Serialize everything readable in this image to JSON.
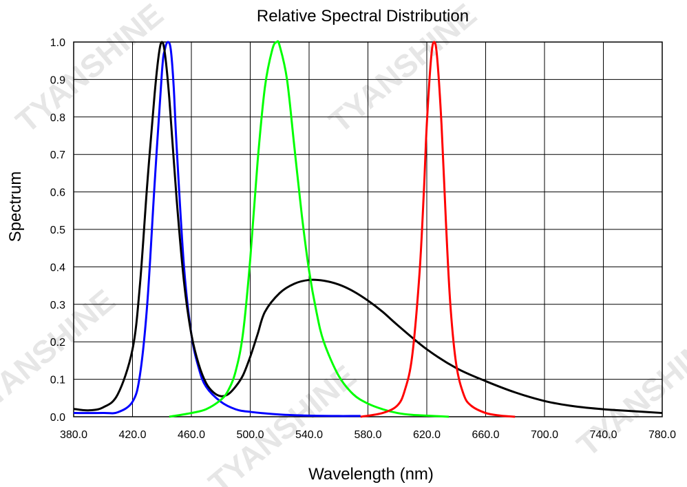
{
  "chart_data": {
    "type": "line",
    "title": "Relative Spectral Distribution",
    "xlabel": "Wavelength (nm)",
    "ylabel": "Spectrum",
    "xlim": [
      380,
      780
    ],
    "ylim": [
      0,
      1.0
    ],
    "x_ticks": [
      "380.0",
      "420.0",
      "460.0",
      "500.0",
      "540.0",
      "580.0",
      "620.0",
      "660.0",
      "700.0",
      "740.0",
      "780.0"
    ],
    "y_ticks": [
      "0.0",
      "0.1",
      "0.2",
      "0.3",
      "0.4",
      "0.5",
      "0.6",
      "0.7",
      "0.8",
      "0.9",
      "1.0"
    ],
    "grid": true,
    "legend": "none",
    "series": [
      {
        "color": "#0000ff",
        "x": [
          380,
          400,
          410,
          420,
          425,
          430,
          435,
          440,
          442,
          444,
          446,
          448,
          450,
          455,
          460,
          465,
          470,
          480,
          490,
          500,
          520,
          540,
          560,
          575
        ],
        "values": [
          0.01,
          0.01,
          0.012,
          0.04,
          0.11,
          0.3,
          0.62,
          0.92,
          0.98,
          1.0,
          0.98,
          0.88,
          0.72,
          0.4,
          0.22,
          0.13,
          0.08,
          0.04,
          0.02,
          0.013,
          0.006,
          0.003,
          0.002,
          0.002
        ]
      },
      {
        "color": "#000000",
        "x": [
          380,
          390,
          400,
          410,
          420,
          425,
          430,
          435,
          438,
          440,
          442,
          445,
          450,
          455,
          460,
          465,
          470,
          475,
          480,
          485,
          490,
          495,
          500,
          505,
          510,
          520,
          530,
          540,
          550,
          560,
          570,
          580,
          590,
          600,
          620,
          640,
          660,
          680,
          700,
          720,
          740,
          760,
          780
        ],
        "values": [
          0.021,
          0.017,
          0.025,
          0.06,
          0.18,
          0.35,
          0.62,
          0.86,
          0.97,
          1.0,
          0.97,
          0.85,
          0.58,
          0.36,
          0.22,
          0.14,
          0.09,
          0.065,
          0.055,
          0.06,
          0.08,
          0.11,
          0.16,
          0.22,
          0.28,
          0.33,
          0.355,
          0.365,
          0.363,
          0.353,
          0.335,
          0.31,
          0.28,
          0.245,
          0.18,
          0.13,
          0.095,
          0.065,
          0.042,
          0.028,
          0.02,
          0.015,
          0.01
        ]
      },
      {
        "color": "#00ff00",
        "x": [
          445,
          460,
          470,
          480,
          485,
          490,
          495,
          500,
          505,
          510,
          515,
          518,
          520,
          525,
          530,
          535,
          540,
          545,
          550,
          560,
          570,
          580,
          590,
          600,
          610,
          620,
          635
        ],
        "values": [
          0.0,
          0.01,
          0.02,
          0.045,
          0.07,
          0.12,
          0.22,
          0.42,
          0.68,
          0.88,
          0.98,
          1.0,
          0.99,
          0.9,
          0.72,
          0.54,
          0.39,
          0.28,
          0.2,
          0.11,
          0.06,
          0.035,
          0.02,
          0.01,
          0.005,
          0.003,
          0.0
        ]
      },
      {
        "color": "#ff0000",
        "x": [
          575,
          590,
          600,
          605,
          610,
          615,
          618,
          620,
          623,
          625,
          627,
          630,
          633,
          636,
          640,
          645,
          650,
          660,
          670,
          680
        ],
        "values": [
          0.0,
          0.01,
          0.03,
          0.07,
          0.16,
          0.38,
          0.6,
          0.78,
          0.96,
          1.0,
          0.96,
          0.78,
          0.52,
          0.3,
          0.14,
          0.06,
          0.03,
          0.01,
          0.003,
          0.0
        ]
      }
    ]
  }
}
